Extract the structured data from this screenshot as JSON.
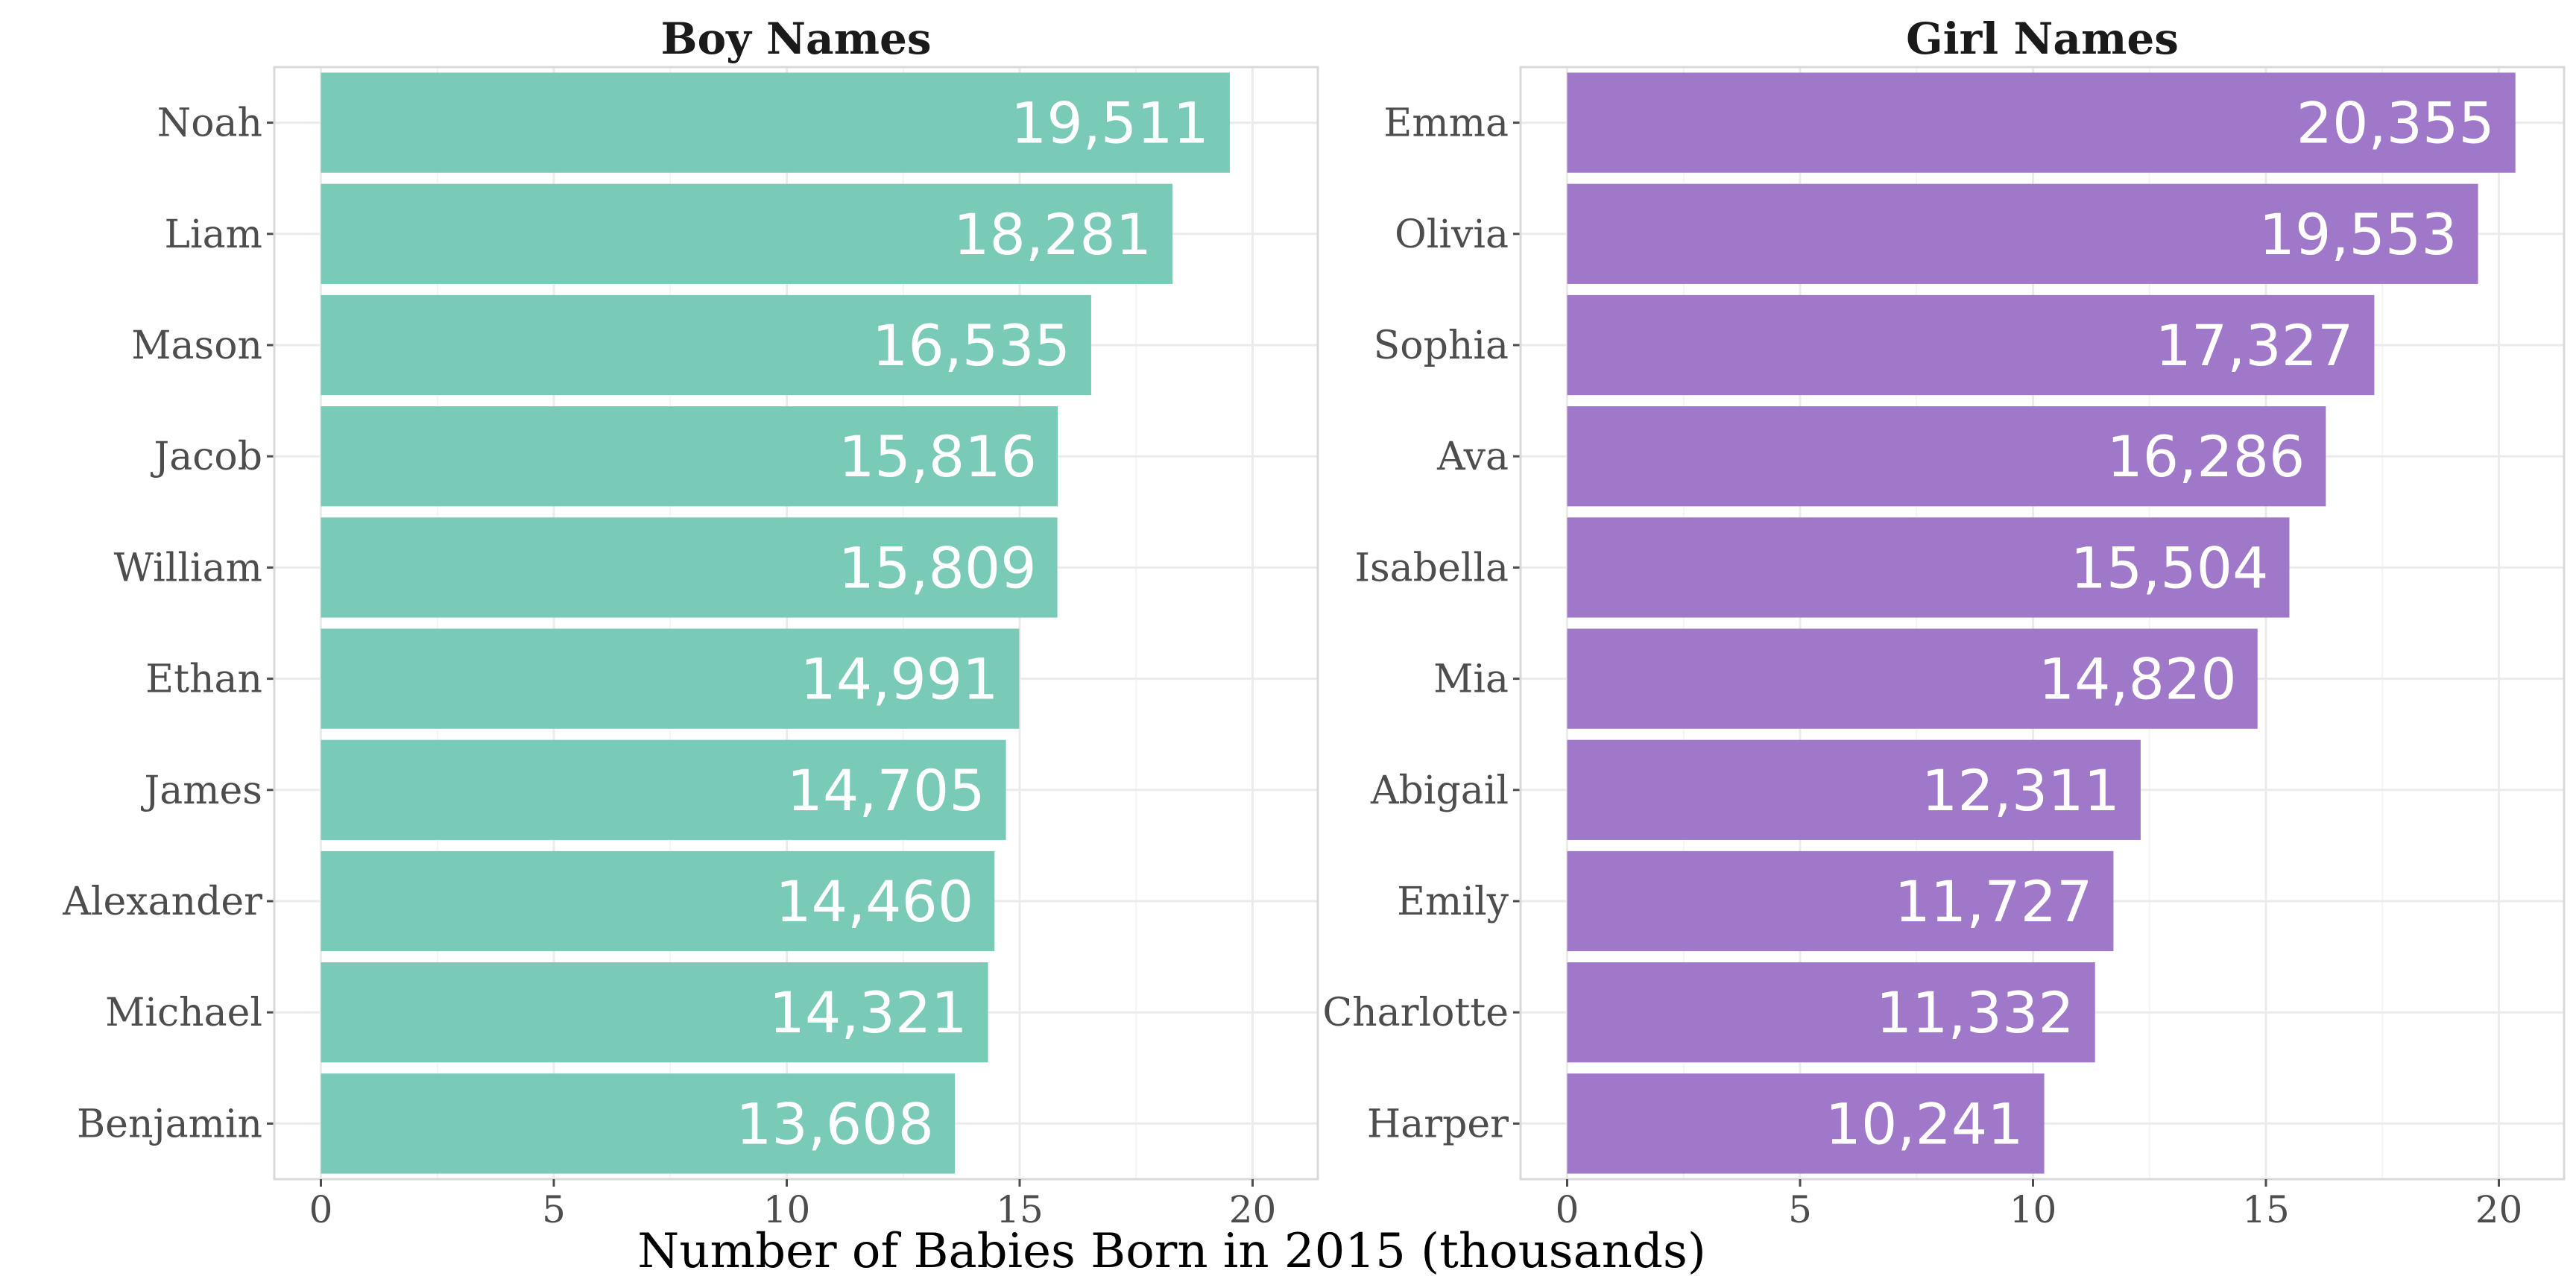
{
  "chart_data": [
    {
      "type": "bar",
      "orientation": "horizontal",
      "title": "Boy Names",
      "color": "#79cbb8",
      "categories": [
        "Noah",
        "Liam",
        "Mason",
        "Jacob",
        "William",
        "Ethan",
        "James",
        "Alexander",
        "Michael",
        "Benjamin"
      ],
      "values": [
        19.511,
        18.281,
        16.535,
        15.816,
        15.809,
        14.991,
        14.705,
        14.46,
        14.321,
        13.608
      ],
      "value_labels": [
        "19,511",
        "18,281",
        "16,535",
        "15,816",
        "15,809",
        "14,991",
        "14,705",
        "14,460",
        "14,321",
        "13,608"
      ],
      "xticks": [
        "0",
        "5",
        "10",
        "15",
        "20"
      ],
      "xlim": [
        -1,
        21.4
      ],
      "grid": true
    },
    {
      "type": "bar",
      "orientation": "horizontal",
      "title": "Girl Names",
      "color": "#a078c9",
      "categories": [
        "Emma",
        "Olivia",
        "Sophia",
        "Ava",
        "Isabella",
        "Mia",
        "Abigail",
        "Emily",
        "Charlotte",
        "Harper"
      ],
      "values": [
        20.355,
        19.553,
        17.327,
        16.286,
        15.504,
        14.82,
        12.311,
        11.727,
        11.332,
        10.241
      ],
      "value_labels": [
        "20,355",
        "19,553",
        "17,327",
        "16,286",
        "15,504",
        "14,820",
        "12,311",
        "11,727",
        "11,332",
        "10,241"
      ],
      "xticks": [
        "0",
        "5",
        "10",
        "15",
        "20"
      ],
      "xlim": [
        -1,
        21.4
      ],
      "grid": true
    }
  ],
  "xlabel": "Number of Babies Born in 2015 (thousands)"
}
